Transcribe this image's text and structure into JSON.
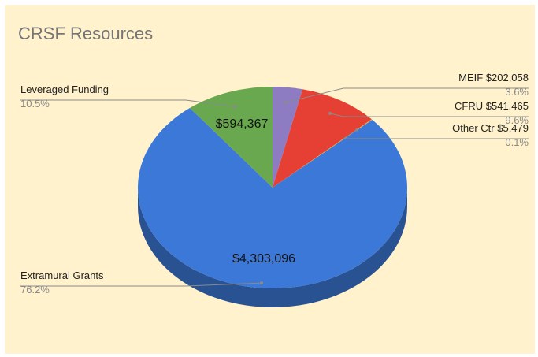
{
  "chart_data": {
    "type": "pie",
    "title": "CRSF Resources",
    "style": "3d",
    "slices": [
      {
        "name": "MEIF",
        "value": 202058,
        "value_label": "$202,058",
        "percent": "3.6%",
        "color": "#8e7cc3"
      },
      {
        "name": "CFRU",
        "value": 541465,
        "value_label": "$541,465",
        "percent": "9.6%",
        "color": "#e63f33"
      },
      {
        "name": "Other Ctr",
        "value": 5479,
        "value_label": "$5,479",
        "percent": "0.1%",
        "color": "#e8b43c"
      },
      {
        "name": "Extramural Grants",
        "value": 4303096,
        "value_label": "$4,303,096",
        "percent": "76.2%",
        "color": "#3c78d8"
      },
      {
        "name": "Leveraged Funding",
        "value": 594367,
        "value_label": "$594,367",
        "percent": "10.5%",
        "color": "#6aa84f"
      }
    ],
    "outside_labels": {
      "MEIF": "MEIF $202,058",
      "CFRU": "CFRU $541,465",
      "Other Ctr": "Other Ctr $5,479",
      "Extramural Grants": "Extramural Grants",
      "Leveraged Funding": "Leveraged Funding"
    },
    "inside_labels": {
      "Extramural Grants": "$4,303,096",
      "Leveraged Funding": "$594,367"
    },
    "colors": {
      "background": "#fff2cc",
      "title": "#757575",
      "leader_line": "#8a8a8a"
    }
  }
}
